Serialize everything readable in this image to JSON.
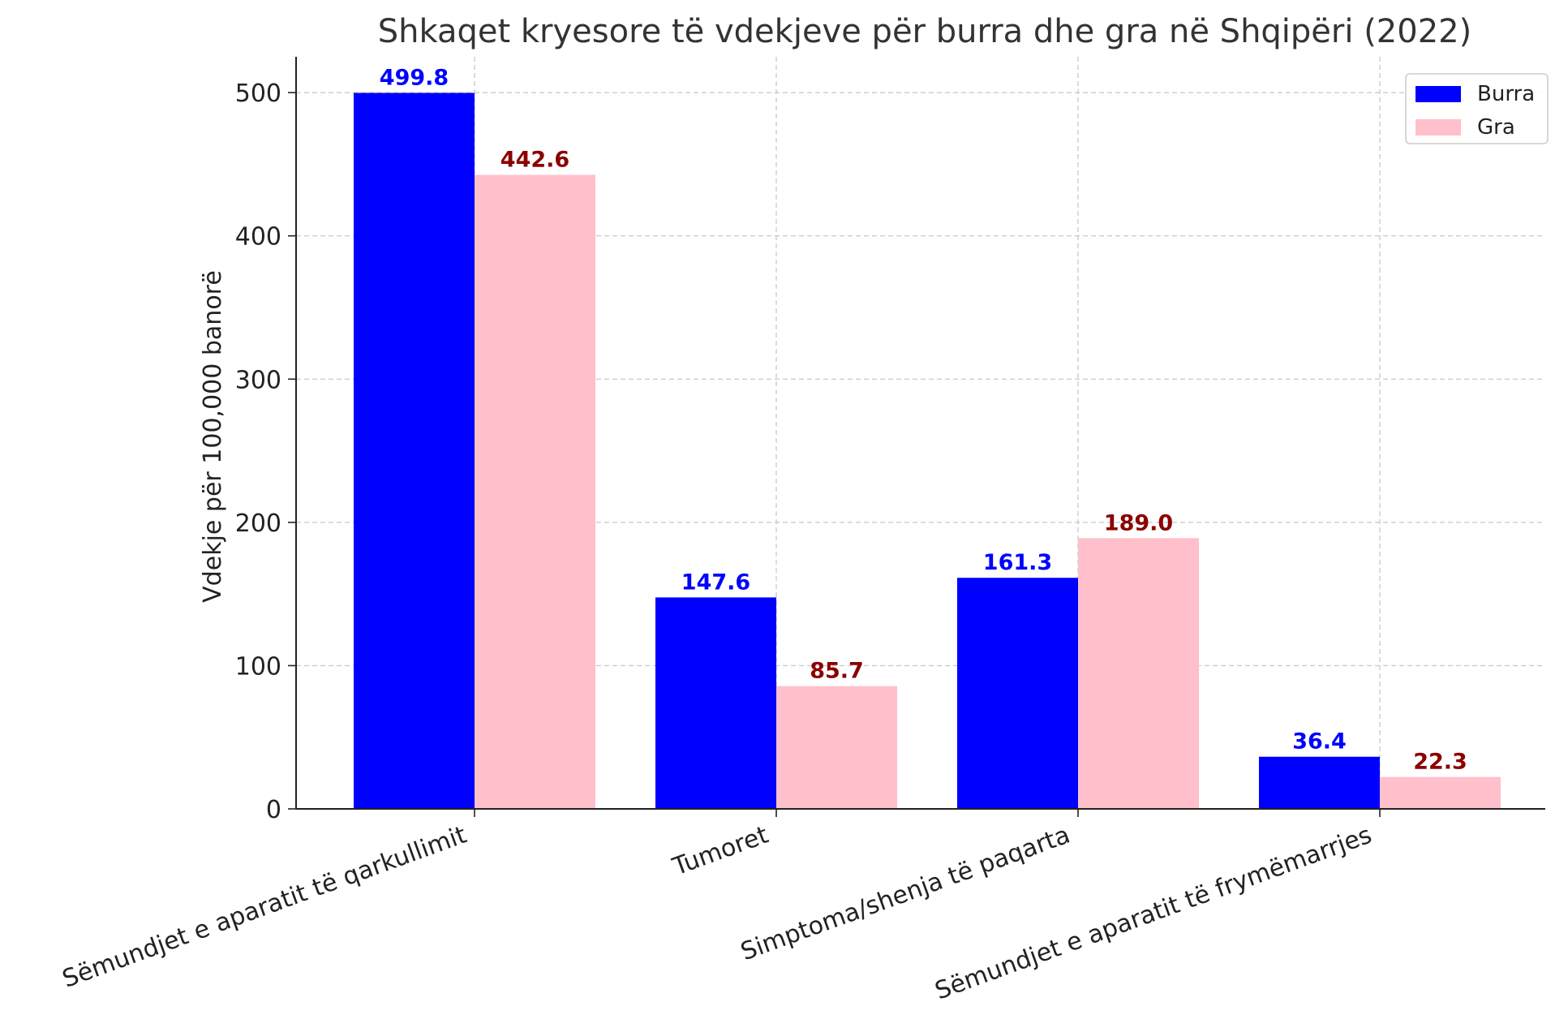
{
  "chart_data": {
    "type": "bar",
    "title": "Shkaqet kryesore të vdekjeve për burra dhe gra në Shqipëri (2022)",
    "xlabel": "",
    "ylabel": "Vdekje për 100,000 banorë",
    "categories": [
      "Sëmundjet e aparatit të qarkullimit",
      "Tumoret",
      "Simptoma/shenja të paqarta",
      "Sëmundjet e aparatit të frymëmarrjes"
    ],
    "series": [
      {
        "name": "Burra",
        "values": [
          499.8,
          147.6,
          161.3,
          36.4
        ],
        "color": "#0000ff",
        "label_color": "#0000ff"
      },
      {
        "name": "Gra",
        "values": [
          442.6,
          85.7,
          189.0,
          22.3
        ],
        "color": "#ffc0cb",
        "label_color": "#8b0000"
      }
    ],
    "ylim": [
      0,
      525
    ],
    "yticks": [
      0,
      100,
      200,
      300,
      400,
      500
    ],
    "grid": true,
    "legend_position": "top-right"
  }
}
